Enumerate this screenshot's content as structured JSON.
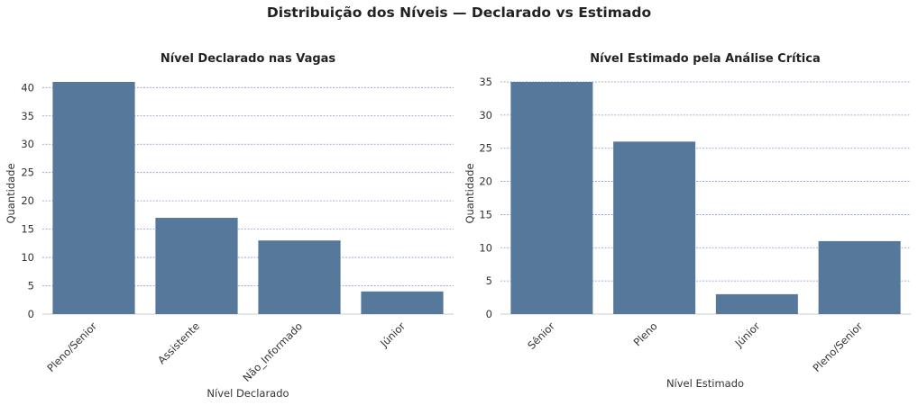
{
  "suptitle": "Distribuição dos Níveis — Declarado vs Estimado",
  "colors": {
    "bar": "#56789b",
    "grid": "#8899cc",
    "axis": "#cccccc"
  },
  "chart_data": [
    {
      "type": "bar",
      "title": "Nível Declarado nas Vagas",
      "xlabel": "Nível Declarado",
      "ylabel": "Quantidade",
      "categories": [
        "Pleno/Senior",
        "Assistente",
        "Não_Informado",
        "Júnior"
      ],
      "values": [
        41,
        17,
        13,
        4
      ],
      "ylim": [
        0,
        41
      ],
      "yticks": [
        0,
        5,
        10,
        15,
        20,
        25,
        30,
        35,
        40
      ],
      "grid": true
    },
    {
      "type": "bar",
      "title": "Nível Estimado pela Análise Crítica",
      "xlabel": "Nível Estimado",
      "ylabel": "Quantidade",
      "categories": [
        "Sênior",
        "Pleno",
        "Júnior",
        "Pleno/Senior"
      ],
      "values": [
        35,
        26,
        3,
        11
      ],
      "ylim": [
        0,
        35
      ],
      "yticks": [
        0,
        5,
        10,
        15,
        20,
        25,
        30,
        35
      ],
      "grid": true
    }
  ]
}
